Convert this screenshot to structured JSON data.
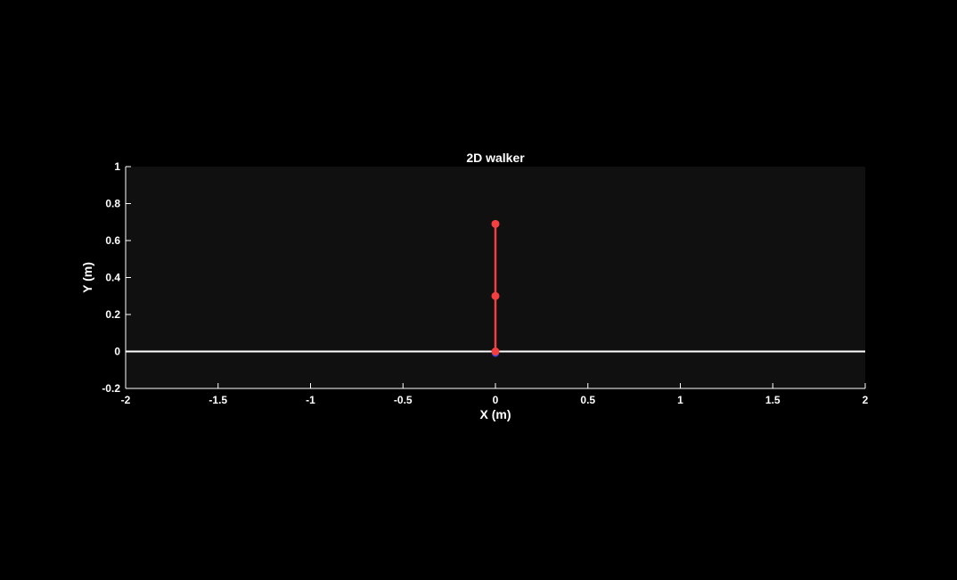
{
  "chart_data": {
    "type": "line",
    "title": "2D walker",
    "xlabel": "X (m)",
    "ylabel": "Y (m)",
    "xlim": [
      -2,
      2
    ],
    "ylim": [
      -0.2,
      1
    ],
    "xticks": [
      "-2",
      "-1.5",
      "-1",
      "-0.5",
      "0",
      "0.5",
      "1",
      "1.5",
      "2"
    ],
    "yticks": [
      "-0.2",
      "0",
      "0.2",
      "0.4",
      "0.6",
      "0.8",
      "1"
    ],
    "grid": false,
    "ground": {
      "y": 0,
      "x": [
        -2,
        2
      ]
    },
    "walker": {
      "joints": [
        {
          "x": 0,
          "y": 0
        },
        {
          "x": 0,
          "y": 0.3
        },
        {
          "x": 0,
          "y": 0.69
        }
      ],
      "contact_point": {
        "x": 0,
        "y": -0.01
      }
    },
    "colors": {
      "background": "#000000",
      "axes_background": "#101010",
      "axis": "#ffffff",
      "ground": "#ffffff",
      "walker": "#f24040",
      "contact": "#4040e0"
    }
  }
}
